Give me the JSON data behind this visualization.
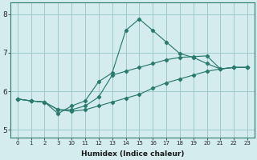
{
  "xlabel": "Humidex (Indice chaleur)",
  "bg_color": "#d4ecee",
  "grid_color": "#9fc8cc",
  "line_color": "#2a7a6e",
  "ylim": [
    4.8,
    8.3
  ],
  "yticks": [
    5,
    6,
    7,
    8
  ],
  "xtick_labels": [
    "0",
    "1",
    "2",
    "3",
    "10",
    "11",
    "12",
    "13",
    "14",
    "15",
    "16",
    "17",
    "18",
    "19",
    "20",
    "21",
    "22",
    "23"
  ],
  "lines": [
    {
      "xi": [
        0,
        1,
        2,
        3,
        4,
        5,
        6,
        7,
        8,
        9,
        10,
        11,
        12,
        13,
        14,
        15,
        16,
        17
      ],
      "y": [
        5.8,
        5.75,
        5.72,
        5.42,
        5.62,
        5.75,
        6.25,
        6.48,
        7.58,
        7.88,
        7.58,
        7.28,
        6.98,
        6.88,
        6.72,
        6.58,
        6.62,
        6.62
      ]
    },
    {
      "xi": [
        0,
        1,
        2,
        3,
        4,
        5,
        6,
        7,
        8,
        9,
        10,
        11,
        12,
        13,
        14,
        15,
        16,
        17
      ],
      "y": [
        5.8,
        5.75,
        5.72,
        5.52,
        5.52,
        5.62,
        5.85,
        6.42,
        6.52,
        6.62,
        6.72,
        6.82,
        6.88,
        6.9,
        6.92,
        6.58,
        6.62,
        6.62
      ]
    },
    {
      "xi": [
        0,
        1,
        2,
        3,
        4,
        5,
        6,
        7,
        8,
        9,
        10,
        11,
        12,
        13,
        14,
        15,
        16,
        17
      ],
      "y": [
        5.8,
        5.75,
        5.72,
        5.52,
        5.48,
        5.52,
        5.62,
        5.72,
        5.82,
        5.92,
        6.08,
        6.22,
        6.32,
        6.42,
        6.52,
        6.58,
        6.62,
        6.62
      ]
    }
  ]
}
